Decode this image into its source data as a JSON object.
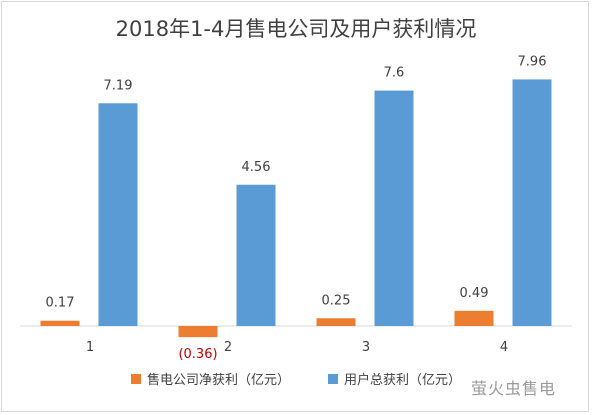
{
  "chart_data": {
    "type": "bar",
    "title": "2018年1-4月售电公司及用户获利情况",
    "categories": [
      "1",
      "2",
      "3",
      "4"
    ],
    "series": [
      {
        "name": "售电公司净获利（亿元）",
        "values": [
          0.17,
          -0.36,
          0.25,
          0.49
        ],
        "labels": [
          "0.17",
          "(0.36)",
          "0.25",
          "0.49"
        ],
        "color": "#ed7d31"
      },
      {
        "name": "用户总获利（亿元）",
        "values": [
          7.19,
          4.56,
          7.6,
          7.96
        ],
        "labels": [
          "7.19",
          "4.56",
          "7.6",
          "7.96"
        ],
        "color": "#5b9bd5"
      }
    ],
    "ylim": [
      -0.5,
      8.2
    ],
    "grid": false,
    "legend": "bottom",
    "colors": {
      "negative_label": "#c00000",
      "text": "#404040",
      "axis": "#d9d9d9"
    }
  },
  "watermark": "萤火虫售电"
}
